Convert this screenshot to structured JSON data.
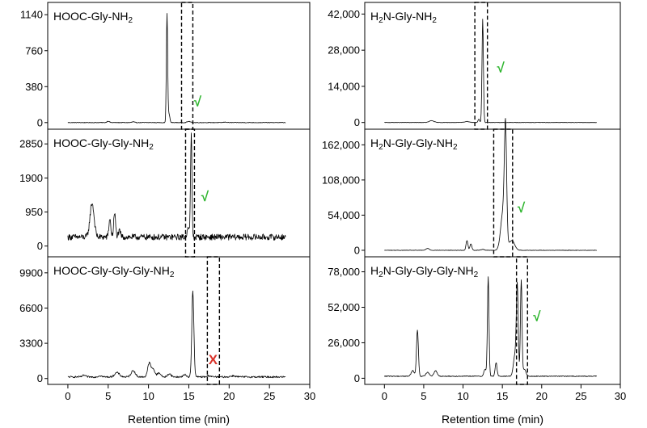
{
  "chart_data": [
    {
      "type": "line",
      "side": "left",
      "row": 0,
      "title": "HOOC-Gly-NH",
      "title_sub": "2",
      "yticks": [
        0,
        380,
        760,
        1140
      ],
      "ytick_labels": [
        "0",
        "380",
        "760",
        "1140"
      ],
      "ylim": [
        -70,
        1270
      ],
      "xlim": [
        -2.5,
        30
      ],
      "xticks": [
        0,
        5,
        10,
        15,
        20,
        25,
        30
      ],
      "x_range": [
        0,
        27
      ],
      "baseline": 0,
      "noise": 3,
      "peaks": [
        [
          5.0,
          15,
          0.15
        ],
        [
          8.1,
          8,
          0.15
        ],
        [
          12.3,
          1150,
          0.08
        ],
        [
          12.55,
          90,
          0.1
        ],
        [
          15.0,
          12,
          0.2
        ],
        [
          19.5,
          5,
          0.2
        ]
      ],
      "window": [
        14.1,
        15.5
      ],
      "mark": "√",
      "mark_x": 16.1,
      "mark_y": 175,
      "mark_color": "#2db52d"
    },
    {
      "type": "line",
      "side": "left",
      "row": 1,
      "title": "HOOC-Gly-Gly-NH",
      "title_sub": "2",
      "yticks": [
        0,
        950,
        1900,
        2850
      ],
      "ytick_labels": [
        "0",
        "950",
        "1900",
        "2850"
      ],
      "ylim": [
        -300,
        3260
      ],
      "xlim": [
        -2.5,
        30
      ],
      "xticks": [
        0,
        5,
        10,
        15,
        20,
        25,
        30
      ],
      "x_range": [
        0,
        27
      ],
      "baseline": 250,
      "noise": 85,
      "peaks": [
        [
          3.0,
          950,
          0.25
        ],
        [
          5.2,
          500,
          0.12
        ],
        [
          5.8,
          650,
          0.12
        ],
        [
          6.4,
          150,
          0.15
        ],
        [
          14.9,
          300,
          0.12
        ],
        [
          15.3,
          2850,
          0.09
        ]
      ],
      "window": [
        14.6,
        15.7
      ],
      "mark": "√",
      "mark_x": 17.0,
      "mark_y": 1250,
      "mark_color": "#2db52d"
    },
    {
      "type": "line",
      "side": "left",
      "row": 2,
      "title": "HOOC-Gly-Gly-Gly-NH",
      "title_sub": "2",
      "yticks": [
        0,
        3300,
        6600,
        9900
      ],
      "ytick_labels": [
        "0",
        "3300",
        "6600",
        "9900"
      ],
      "ylim": [
        -550,
        11400
      ],
      "xlim": [
        -2.5,
        30
      ],
      "xticks": [
        0,
        5,
        10,
        15,
        20,
        25,
        30
      ],
      "x_range": [
        0,
        27
      ],
      "baseline": 150,
      "noise": 80,
      "peaks": [
        [
          2.0,
          150,
          0.2
        ],
        [
          4.0,
          120,
          0.2
        ],
        [
          6.1,
          400,
          0.3
        ],
        [
          8.1,
          600,
          0.25
        ],
        [
          10.1,
          1300,
          0.2
        ],
        [
          10.6,
          700,
          0.2
        ],
        [
          11.3,
          400,
          0.2
        ],
        [
          12.6,
          300,
          0.2
        ],
        [
          14.5,
          200,
          0.2
        ],
        [
          15.5,
          8000,
          0.13
        ],
        [
          17.5,
          120,
          0.2
        ],
        [
          20.5,
          100,
          0.3
        ]
      ],
      "window": [
        17.3,
        18.8
      ],
      "mark": "X",
      "mark_x": 18.0,
      "mark_y": 1350,
      "mark_color": "#d9342b"
    },
    {
      "type": "line",
      "side": "right",
      "row": 0,
      "title": "H",
      "title_parts": [
        "H",
        "2",
        "N-Gly-NH",
        "2"
      ],
      "yticks": [
        0,
        14000,
        28000,
        42000
      ],
      "ytick_labels": [
        "0",
        "14,000",
        "28,000",
        "42,000"
      ],
      "ylim": [
        -2600,
        46500
      ],
      "xlim": [
        -2.5,
        30
      ],
      "xticks": [
        0,
        5,
        10,
        15,
        20,
        25,
        30
      ],
      "x_range": [
        0,
        27
      ],
      "baseline": 0,
      "noise": 70,
      "peaks": [
        [
          6.0,
          700,
          0.3
        ],
        [
          10.5,
          400,
          0.3
        ],
        [
          12.0,
          1300,
          0.1
        ],
        [
          12.5,
          40000,
          0.09
        ]
      ],
      "window": [
        11.5,
        13.1
      ],
      "mark": "√",
      "mark_x": 14.8,
      "mark_y": 19500,
      "mark_color": "#2db52d"
    },
    {
      "type": "line",
      "side": "right",
      "row": 1,
      "title": "H",
      "title_parts": [
        "H",
        "2",
        "N-Gly-Gly-NH",
        "2"
      ],
      "yticks": [
        0,
        54000,
        108000,
        162000
      ],
      "ytick_labels": [
        "0",
        "54,000",
        "108,000",
        "162,000"
      ],
      "ylim": [
        -10000,
        186000
      ],
      "xlim": [
        -2.5,
        30
      ],
      "xticks": [
        0,
        5,
        10,
        15,
        20,
        25,
        30
      ],
      "x_range": [
        0,
        27
      ],
      "baseline": 0,
      "noise": 300,
      "peaks": [
        [
          5.5,
          3000,
          0.2
        ],
        [
          10.5,
          15000,
          0.12
        ],
        [
          11.0,
          10000,
          0.12
        ],
        [
          12.5,
          1500,
          0.2
        ],
        [
          15.1,
          60000,
          0.3
        ],
        [
          15.4,
          165000,
          0.14
        ],
        [
          16.2,
          15000,
          0.35
        ]
      ],
      "window": [
        13.9,
        16.3
      ],
      "mark": "√",
      "mark_x": 17.4,
      "mark_y": 58000,
      "mark_color": "#2db52d"
    },
    {
      "type": "line",
      "side": "right",
      "row": 2,
      "title": "H",
      "title_parts": [
        "H",
        "2",
        "N-Gly-Gly-Gly-NH",
        "2"
      ],
      "yticks": [
        0,
        26000,
        52000,
        78000
      ],
      "ytick_labels": [
        "0",
        "26,000",
        "52,000",
        "78,000"
      ],
      "ylim": [
        -4500,
        89000
      ],
      "xlim": [
        -2.5,
        30
      ],
      "xticks": [
        0,
        5,
        10,
        15,
        20,
        25,
        30
      ],
      "x_range": [
        0,
        27
      ],
      "baseline": 1500,
      "noise": 300,
      "peaks": [
        [
          3.6,
          4000,
          0.2
        ],
        [
          4.2,
          34000,
          0.12
        ],
        [
          5.5,
          3000,
          0.2
        ],
        [
          6.5,
          4000,
          0.2
        ],
        [
          12.8,
          5000,
          0.15
        ],
        [
          13.2,
          73000,
          0.1
        ],
        [
          14.2,
          10000,
          0.12
        ],
        [
          16.6,
          15000,
          0.2
        ],
        [
          16.9,
          64000,
          0.12
        ],
        [
          17.4,
          70000,
          0.1
        ],
        [
          17.8,
          5000,
          0.2
        ]
      ],
      "window": [
        16.8,
        18.2
      ],
      "mark": "√",
      "mark_x": 19.4,
      "mark_y": 42000,
      "mark_color": "#2db52d"
    }
  ],
  "xlabel": "Retention time (min)",
  "xtick_labels": [
    "0",
    "5",
    "10",
    "15",
    "20",
    "25",
    "30"
  ]
}
